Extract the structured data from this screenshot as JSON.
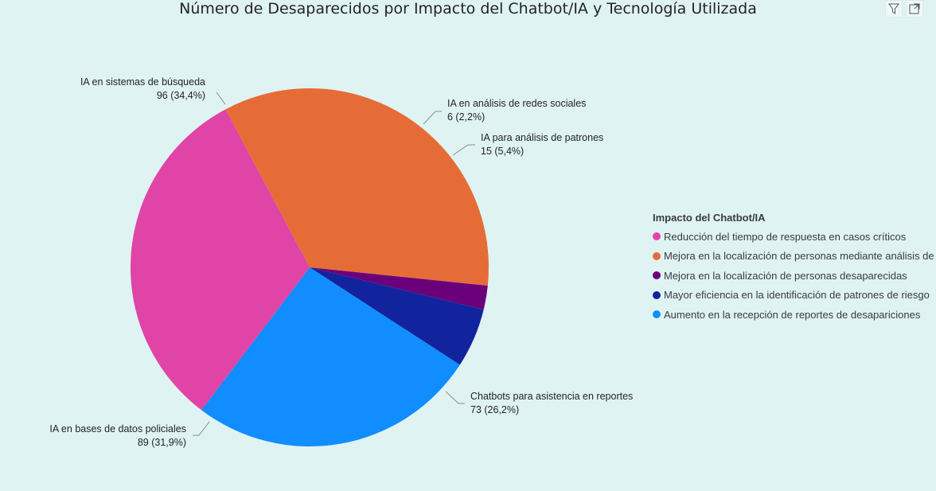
{
  "toolbar": {
    "filter_icon": "filter-icon",
    "focus_icon": "focus-mode-icon"
  },
  "legend": {
    "title": "Impacto del Chatbot/IA",
    "items": [
      {
        "label": "Reducción del tiempo de respuesta en casos críticos",
        "color": "#e044a7"
      },
      {
        "label": "Mejora en la localización de personas mediante análisis de ...",
        "color": "#e66c37"
      },
      {
        "label": "Mejora en la localización de personas desaparecidas",
        "color": "#6b007b"
      },
      {
        "label": "Mayor eficiencia en la identificación de patrones de riesgo",
        "color": "#12239e"
      },
      {
        "label": "Aumento en la recepción de reportes de desapariciones",
        "color": "#118dff"
      }
    ]
  },
  "chart_data": {
    "type": "pie",
    "title": "Número de Desaparecidos por Impacto del Chatbot/IA y Tecnología Utilizada",
    "slices": [
      {
        "label": "IA en sistemas de búsqueda",
        "value": 96,
        "percent": "34,4%",
        "color": "#e66c37",
        "value_label": "96 (34,4%)"
      },
      {
        "label": "IA en análisis de redes sociales",
        "value": 6,
        "percent": "2,2%",
        "color": "#6b007b",
        "value_label": "6 (2,2%)"
      },
      {
        "label": "IA para análisis de patrones",
        "value": 15,
        "percent": "5,4%",
        "color": "#12239e",
        "value_label": "15 (5,4%)"
      },
      {
        "label": "Chatbots para asistencia en reportes",
        "value": 73,
        "percent": "26,2%",
        "color": "#118dff",
        "value_label": "73 (26,2%)"
      },
      {
        "label": "IA en bases de datos policiales",
        "value": 89,
        "percent": "31,9%",
        "color": "#e044a7",
        "value_label": "89 (31,9%)"
      }
    ]
  }
}
